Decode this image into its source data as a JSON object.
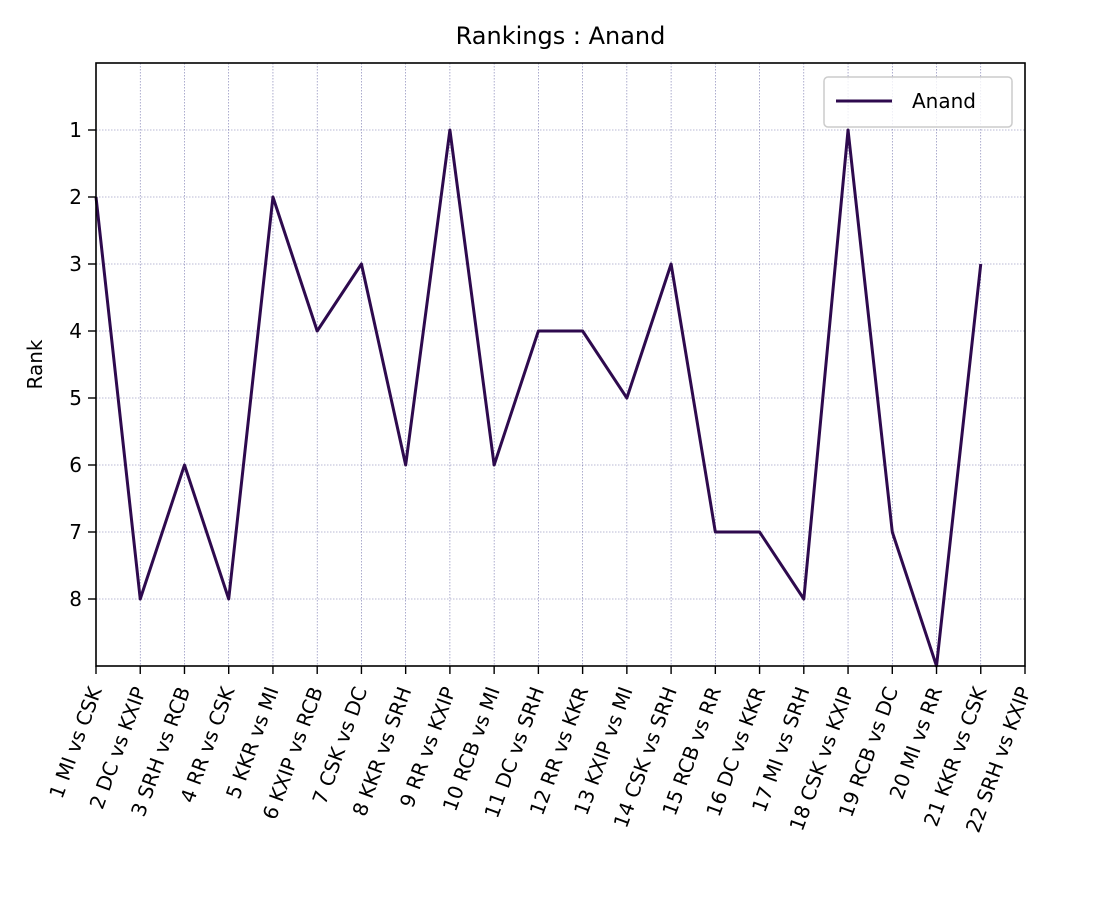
{
  "chart_data": {
    "type": "line",
    "title": "Rankings : Anand",
    "xlabel": "",
    "ylabel": "Rank",
    "categories": [
      "1 MI vs CSK",
      "2 DC vs KXIP",
      "3 SRH vs RCB",
      "4 RR vs CSK",
      "5 KKR vs MI",
      "6 KXIP vs RCB",
      "7 CSK vs DC",
      "8 KKR vs SRH",
      "9 RR vs KXIP",
      "10 RCB vs MI",
      "11 DC vs SRH",
      "12 RR vs KKR",
      "13 KXIP vs MI",
      "14 CSK vs SRH",
      "15 RCB vs RR",
      "16 DC vs KKR",
      "17 MI vs SRH",
      "18 CSK vs KXIP",
      "19 RCB vs DC",
      "20 MI vs RR",
      "21 KKR vs CSK",
      "22 SRH vs KXIP"
    ],
    "series": [
      {
        "name": "Anand",
        "color": "#2e0a4e",
        "values": [
          2,
          8,
          6,
          8,
          2,
          4,
          3,
          6,
          1,
          6,
          4,
          4,
          5,
          3,
          7,
          7,
          8,
          1,
          7,
          9,
          3,
          null
        ]
      }
    ],
    "ylim": [
      9,
      0
    ],
    "y_inverted": true,
    "yticks": [
      1,
      2,
      3,
      4,
      5,
      6,
      7,
      8
    ],
    "grid": true,
    "grid_color": "#3b3b8a",
    "legend": "top-right"
  }
}
